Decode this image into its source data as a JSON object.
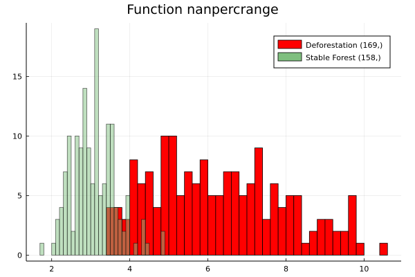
{
  "chart_data": {
    "type": "bar",
    "title": "Function nanpercrange",
    "xlabel": "",
    "ylabel": "",
    "xlim": [
      1.35,
      10.95
    ],
    "ylim": [
      -0.5,
      19.5
    ],
    "xticks": [
      2,
      4,
      6,
      8,
      10
    ],
    "yticks": [
      0,
      5,
      10,
      15
    ],
    "grid": true,
    "legend_position": "top-right",
    "series": [
      {
        "name": "Deforestation (169,)",
        "color": "#ff0000",
        "bin_width": 0.2,
        "bins": [
          {
            "x": 3.4,
            "value": 4
          },
          {
            "x": 3.6,
            "value": 4
          },
          {
            "x": 3.8,
            "value": 3
          },
          {
            "x": 4.0,
            "value": 8
          },
          {
            "x": 4.2,
            "value": 6
          },
          {
            "x": 4.4,
            "value": 7
          },
          {
            "x": 4.6,
            "value": 4
          },
          {
            "x": 4.8,
            "value": 10
          },
          {
            "x": 5.0,
            "value": 10
          },
          {
            "x": 5.2,
            "value": 5
          },
          {
            "x": 5.4,
            "value": 7
          },
          {
            "x": 5.6,
            "value": 6
          },
          {
            "x": 5.8,
            "value": 8
          },
          {
            "x": 6.0,
            "value": 5
          },
          {
            "x": 6.2,
            "value": 5
          },
          {
            "x": 6.4,
            "value": 7
          },
          {
            "x": 6.6,
            "value": 7
          },
          {
            "x": 6.8,
            "value": 5
          },
          {
            "x": 7.0,
            "value": 6
          },
          {
            "x": 7.2,
            "value": 9
          },
          {
            "x": 7.4,
            "value": 3
          },
          {
            "x": 7.6,
            "value": 6
          },
          {
            "x": 7.8,
            "value": 4
          },
          {
            "x": 8.0,
            "value": 5
          },
          {
            "x": 8.2,
            "value": 5
          },
          {
            "x": 8.4,
            "value": 1
          },
          {
            "x": 8.6,
            "value": 2
          },
          {
            "x": 8.8,
            "value": 3
          },
          {
            "x": 9.0,
            "value": 3
          },
          {
            "x": 9.2,
            "value": 2
          },
          {
            "x": 9.4,
            "value": 2
          },
          {
            "x": 9.6,
            "value": 5
          },
          {
            "x": 9.8,
            "value": 1
          },
          {
            "x": 10.4,
            "value": 1
          }
        ]
      },
      {
        "name": "Stable Forest (158,)",
        "color": "#7fbf7f",
        "bin_width": 0.1,
        "bins": [
          {
            "x": 1.7,
            "value": 1
          },
          {
            "x": 2.0,
            "value": 1
          },
          {
            "x": 2.1,
            "value": 3
          },
          {
            "x": 2.2,
            "value": 4
          },
          {
            "x": 2.3,
            "value": 7
          },
          {
            "x": 2.4,
            "value": 10
          },
          {
            "x": 2.5,
            "value": 2
          },
          {
            "x": 2.6,
            "value": 10
          },
          {
            "x": 2.7,
            "value": 9
          },
          {
            "x": 2.8,
            "value": 14
          },
          {
            "x": 2.9,
            "value": 9
          },
          {
            "x": 3.0,
            "value": 6
          },
          {
            "x": 3.1,
            "value": 19
          },
          {
            "x": 3.2,
            "value": 5
          },
          {
            "x": 3.3,
            "value": 6
          },
          {
            "x": 3.4,
            "value": 11
          },
          {
            "x": 3.5,
            "value": 11
          },
          {
            "x": 3.6,
            "value": 4
          },
          {
            "x": 3.7,
            "value": 3
          },
          {
            "x": 3.8,
            "value": 2
          },
          {
            "x": 3.9,
            "value": 5
          },
          {
            "x": 4.1,
            "value": 1
          },
          {
            "x": 4.3,
            "value": 3
          },
          {
            "x": 4.4,
            "value": 1
          },
          {
            "x": 4.8,
            "value": 2
          }
        ]
      }
    ]
  }
}
